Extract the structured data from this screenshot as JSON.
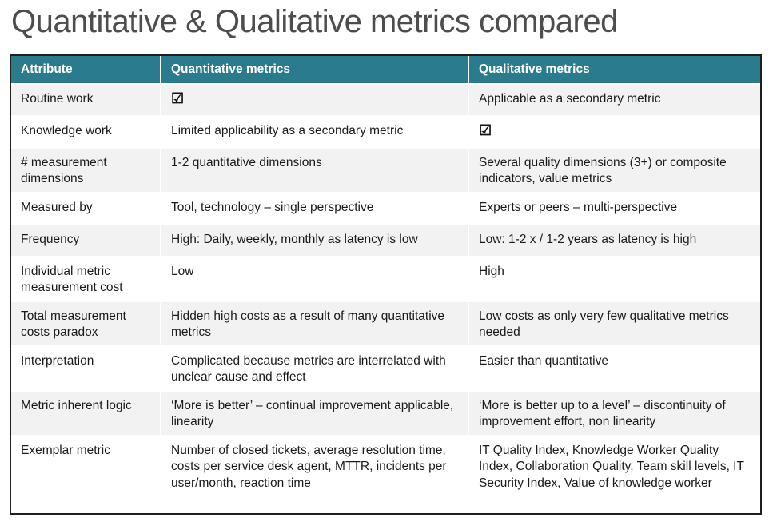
{
  "title": "Quantitative & Qualitative metrics compared",
  "colors": {
    "header_bg": "#2a7b8c",
    "header_text": "#ffffff",
    "row_alt_bg": "#f2f2f2",
    "row_bg": "#ffffff",
    "outer_border": "#1f1f1f",
    "body_text": "#1a1a1a",
    "title_text": "#4d4d4d"
  },
  "icons": {
    "checked_checkbox": "☑"
  },
  "table": {
    "headers": [
      "Attribute",
      "Quantitative metrics",
      "Qualitative metrics"
    ],
    "rows": [
      {
        "cells": [
          "Routine work",
          "☑",
          "Applicable as a secondary metric"
        ]
      },
      {
        "cells": [
          "Knowledge work",
          "Limited applicability as a secondary metric",
          "☑"
        ]
      },
      {
        "cells": [
          "# measurement dimensions",
          "1-2 quantitative dimensions",
          "Several quality dimensions (3+) or composite indicators, value metrics"
        ]
      },
      {
        "cells": [
          "Measured by",
          "Tool, technology – single perspective",
          "Experts or peers – multi-perspective"
        ]
      },
      {
        "cells": [
          "Frequency",
          "High: Daily, weekly, monthly as latency is low",
          "Low: 1-2 x / 1-2 years as latency is high"
        ]
      },
      {
        "cells": [
          "Individual metric measurement cost",
          "Low",
          "High"
        ]
      },
      {
        "cells": [
          "Total measurement costs paradox",
          "Hidden high costs as a result of many quantitative metrics",
          "Low costs as only very few qualitative metrics needed"
        ]
      },
      {
        "cells": [
          "Interpretation",
          "Complicated because metrics are interrelated with unclear cause and effect",
          "Easier than quantitative"
        ]
      },
      {
        "cells": [
          "Metric inherent logic",
          "‘More is better’ – continual improvement applicable, linearity",
          "‘More is better up to a level’ – discontinuity of improvement effort, non linearity"
        ]
      },
      {
        "cells": [
          "Exemplar metric",
          "Number of closed tickets, average resolution time, costs per service desk agent, MTTR, incidents per user/month, reaction time",
          "IT Quality Index, Knowledge Worker Quality Index, Collaboration Quality, Team skill levels, IT Security Index, Value of knowledge worker"
        ]
      }
    ]
  }
}
